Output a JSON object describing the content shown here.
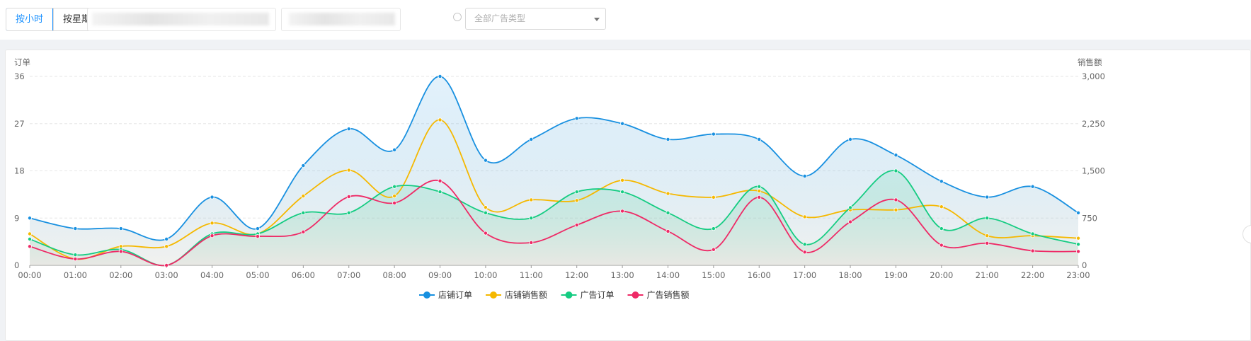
{
  "toolbar": {
    "by_hour_label": "按小时",
    "by_week_label": "按星期",
    "ad_type_placeholder": "全部广告类型"
  },
  "colors": {
    "store_orders": "#1890e0",
    "store_sales": "#f5b800",
    "ad_orders": "#15cc82",
    "ad_sales": "#ee2a66",
    "accent": "#1890ff"
  },
  "chart_data": {
    "type": "line",
    "left_axis": {
      "label": "订单",
      "ticks": [
        0,
        9,
        18,
        27,
        36
      ],
      "ylim": [
        0,
        36
      ]
    },
    "right_axis": {
      "label": "销售额",
      "ticks": [
        "0",
        "750",
        "1,500",
        "2,250",
        "3,000"
      ],
      "ylim": [
        0,
        3000
      ]
    },
    "categories": [
      "00:00",
      "01:00",
      "02:00",
      "03:00",
      "04:00",
      "05:00",
      "06:00",
      "07:00",
      "08:00",
      "09:00",
      "10:00",
      "11:00",
      "12:00",
      "13:00",
      "14:00",
      "15:00",
      "16:00",
      "17:00",
      "18:00",
      "19:00",
      "20:00",
      "21:00",
      "22:00",
      "23:00"
    ],
    "grid": true,
    "legend_position": "bottom",
    "series": [
      {
        "name": "店铺订单",
        "axis": "left",
        "color": "#1890e0",
        "area": true,
        "values": [
          9,
          7,
          7,
          5,
          13,
          7,
          19,
          26,
          22,
          36,
          20,
          24,
          28,
          27,
          24,
          25,
          24,
          17,
          24,
          21,
          16,
          13,
          15,
          10
        ]
      },
      {
        "name": "店铺销售额",
        "axis": "right",
        "color": "#f5b800",
        "area": false,
        "values": [
          500,
          100,
          300,
          300,
          670,
          500,
          1100,
          1510,
          1100,
          2310,
          920,
          1040,
          1030,
          1350,
          1140,
          1080,
          1180,
          770,
          880,
          880,
          930,
          470,
          470,
          430
        ]
      },
      {
        "name": "广告订单",
        "axis": "left",
        "color": "#15cc82",
        "area": true,
        "values": [
          5,
          2,
          3,
          0,
          6,
          6,
          10,
          10,
          15,
          14,
          10,
          9,
          14,
          14,
          10,
          7,
          15,
          4,
          11,
          18,
          7,
          9,
          6,
          4
        ]
      },
      {
        "name": "广告销售额",
        "axis": "right",
        "color": "#ee2a66",
        "area": false,
        "values": [
          300,
          100,
          220,
          0,
          470,
          460,
          530,
          1090,
          990,
          1340,
          510,
          360,
          640,
          860,
          540,
          250,
          1080,
          210,
          690,
          1040,
          320,
          350,
          230,
          220
        ]
      }
    ]
  }
}
